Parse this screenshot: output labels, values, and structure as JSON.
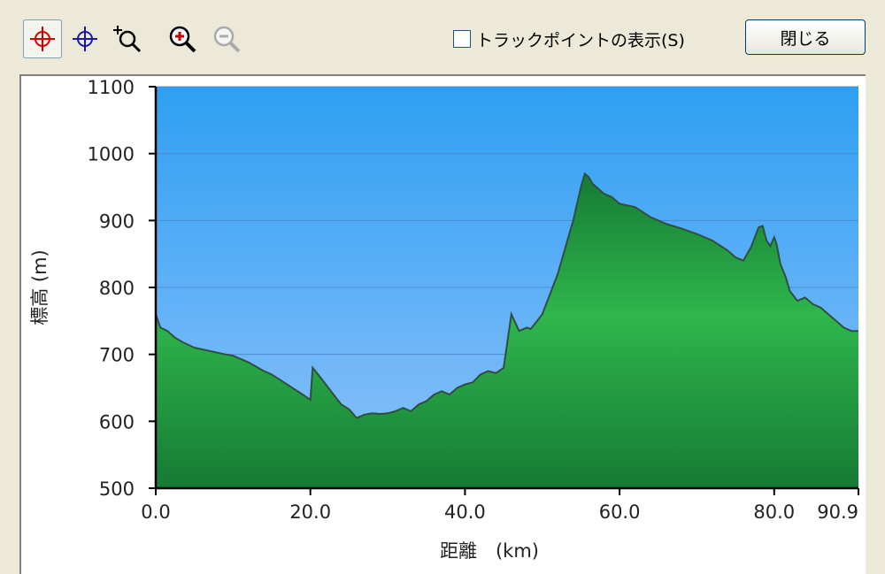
{
  "toolbar": {
    "tools": [
      {
        "icon": "red-crosshair-icon",
        "active": true,
        "color": "#d40000"
      },
      {
        "icon": "blue-crosshair-icon",
        "active": false,
        "color": "#1a1aa8"
      },
      {
        "icon": "zoom-box-icon",
        "active": false
      },
      {
        "icon": "zoom-in-icon",
        "active": false
      },
      {
        "icon": "zoom-out-icon",
        "active": false
      }
    ],
    "trackpoint_label": "トラックポイントの表示(S)",
    "trackpoint_checked": false,
    "close_label": "閉じる"
  },
  "chart_data": {
    "type": "area",
    "xlabel": "距離　(km)",
    "ylabel": "標高 (m)",
    "xlim": [
      0,
      90.9
    ],
    "ylim": [
      500,
      1100
    ],
    "x_ticks": [
      0,
      20,
      40,
      60,
      80,
      90.9
    ],
    "x_tick_labels": [
      "0.0",
      "20.0",
      "40.0",
      "60.0",
      "80.0",
      "90.9"
    ],
    "y_ticks": [
      500,
      600,
      700,
      800,
      900,
      1000,
      1100
    ],
    "y_tick_labels": [
      "500",
      "600",
      "700",
      "800",
      "900",
      "1000",
      "1100"
    ],
    "grid": true,
    "colors": {
      "sky_top": "#2e9ff2",
      "sky_bottom": "#8fc2fb",
      "fill_light": "#2fb64c",
      "fill_dark": "#167a34",
      "outline": "#2f4f3f"
    },
    "series": [
      {
        "x": [
          0,
          0.6,
          1.5,
          2.5,
          3.5,
          5,
          7,
          9,
          10,
          12,
          14,
          15,
          17,
          19,
          20,
          20.3,
          21,
          22,
          23,
          24,
          25,
          26,
          27,
          28,
          29,
          30,
          31,
          32,
          33,
          34,
          35,
          36,
          37,
          38,
          39,
          40,
          41,
          42,
          43,
          44,
          45,
          46,
          47,
          48,
          48.5,
          49,
          50,
          51,
          52,
          53,
          54,
          55,
          55.5,
          56,
          56.5,
          57,
          58,
          59,
          60,
          62,
          64,
          66,
          68,
          70,
          72,
          74,
          75,
          76,
          77,
          78,
          78.5,
          79,
          79.5,
          80,
          80.3,
          80.8,
          81.5,
          82,
          83,
          84,
          85,
          86,
          87,
          88,
          89,
          90,
          90.9
        ],
        "y": [
          760,
          740,
          735,
          725,
          718,
          710,
          705,
          700,
          698,
          688,
          675,
          670,
          655,
          640,
          632,
          680,
          670,
          655,
          640,
          625,
          618,
          605,
          610,
          612,
          611,
          612,
          615,
          620,
          615,
          625,
          630,
          640,
          645,
          640,
          650,
          655,
          658,
          670,
          675,
          672,
          680,
          760,
          735,
          740,
          738,
          745,
          760,
          790,
          820,
          860,
          900,
          950,
          970,
          965,
          955,
          950,
          940,
          935,
          925,
          920,
          905,
          895,
          888,
          880,
          870,
          855,
          845,
          840,
          860,
          890,
          892,
          870,
          862,
          875,
          865,
          835,
          815,
          795,
          780,
          785,
          775,
          770,
          760,
          750,
          740,
          735,
          735
        ]
      }
    ]
  }
}
